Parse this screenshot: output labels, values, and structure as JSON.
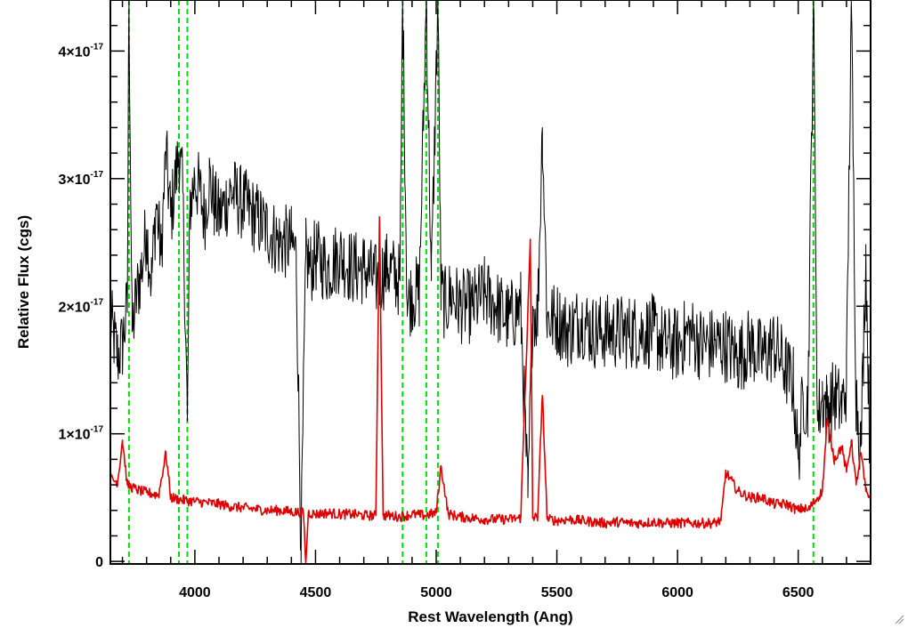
{
  "chart_data": {
    "type": "line",
    "title": "",
    "xlabel": "Rest Wavelength (Ang)",
    "ylabel": "Relative Flux (cgs)",
    "xlim": [
      3650,
      6800
    ],
    "ylim": [
      -2e-19,
      4.4e-17
    ],
    "x_ticks": [
      {
        "value": 4000,
        "label": "4000"
      },
      {
        "value": 4500,
        "label": "4500"
      },
      {
        "value": 5000,
        "label": "5000"
      },
      {
        "value": 5500,
        "label": "5500"
      },
      {
        "value": 6000,
        "label": "6000"
      },
      {
        "value": 6500,
        "label": "6500"
      }
    ],
    "y_ticks": [
      {
        "value": 0,
        "mantissa": "0",
        "exponent": ""
      },
      {
        "value": 1e-17,
        "mantissa": "1×10",
        "exponent": "-17"
      },
      {
        "value": 2e-17,
        "mantissa": "2×10",
        "exponent": "-17"
      },
      {
        "value": 3e-17,
        "mantissa": "3×10",
        "exponent": "-17"
      },
      {
        "value": 4e-17,
        "mantissa": "4×10",
        "exponent": "-17"
      }
    ],
    "vertical_markers": {
      "color": "#00dd00",
      "style": "dashed",
      "x": [
        3727,
        3934,
        3969,
        4861,
        4959,
        5007,
        6563
      ]
    },
    "series": [
      {
        "color": "#000000",
        "x": [
          3650,
          3680,
          3700,
          3720,
          3727,
          3740,
          3760,
          3780,
          3800,
          3820,
          3840,
          3860,
          3880,
          3900,
          3920,
          3934,
          3950,
          3969,
          3980,
          4000,
          4020,
          4040,
          4060,
          4080,
          4100,
          4150,
          4200,
          4250,
          4300,
          4350,
          4400,
          4420,
          4440,
          4460,
          4480,
          4500,
          4550,
          4600,
          4650,
          4700,
          4750,
          4800,
          4850,
          4861,
          4880,
          4900,
          4930,
          4959,
          4980,
          5007,
          5020,
          5040,
          5060,
          5100,
          5150,
          5200,
          5250,
          5300,
          5350,
          5380,
          5400,
          5420,
          5440,
          5460,
          5500,
          5550,
          5600,
          5650,
          5700,
          5750,
          5800,
          5850,
          5900,
          5950,
          6000,
          6050,
          6100,
          6150,
          6200,
          6250,
          6300,
          6350,
          6400,
          6450,
          6480,
          6500,
          6520,
          6540,
          6563,
          6580,
          6600,
          6620,
          6650,
          6680,
          6700,
          6720,
          6740,
          6760,
          6780,
          6800
        ],
        "y": [
          1.9e-17,
          1.6e-17,
          1.7e-17,
          2e-17,
          4.4e-17,
          1.8e-17,
          2.1e-17,
          2.3e-17,
          2.6e-17,
          2.2e-17,
          2.8e-17,
          2.4e-17,
          3.2e-17,
          2.7e-17,
          3e-17,
          3.2e-17,
          2.9e-17,
          1.1e-17,
          2.8e-17,
          3e-17,
          2.9e-17,
          2.7e-17,
          3e-17,
          2.8e-17,
          2.7e-17,
          2.9e-17,
          2.8e-17,
          2.7e-17,
          2.6e-17,
          2.5e-17,
          2.5e-17,
          2.4e-17,
          1e-18,
          2.4e-17,
          2.3e-17,
          2.4e-17,
          2.3e-17,
          2.4e-17,
          2.3e-17,
          2.3e-17,
          2.2e-17,
          2.3e-17,
          2.2e-17,
          4.4e-17,
          2e-17,
          2.1e-17,
          2.1e-17,
          4.4e-17,
          2.2e-17,
          4.4e-17,
          2.1e-17,
          2e-17,
          2.1e-17,
          2e-17,
          2e-17,
          2.1e-17,
          2e-17,
          1.9e-17,
          2e-17,
          5e-18,
          2e-17,
          1.9e-17,
          3.4e-17,
          1.9e-17,
          1.9e-17,
          1.8e-17,
          1.9e-17,
          1.8e-17,
          1.8e-17,
          1.8e-17,
          1.8e-17,
          1.8e-17,
          1.8e-17,
          1.7e-17,
          1.7e-17,
          1.8e-17,
          1.7e-17,
          1.7e-17,
          1.7e-17,
          1.6e-17,
          1.7e-17,
          1.6e-17,
          1.7e-17,
          1.5e-17,
          1.4e-17,
          8e-18,
          1.3e-17,
          1.2e-17,
          4.4e-17,
          1.1e-17,
          1.3e-17,
          1.2e-17,
          1.3e-17,
          1.2e-17,
          1.4e-17,
          4.4e-17,
          1.3e-17,
          9e-18,
          2.4e-17,
          6e-18
        ],
        "noise": 3e-18
      },
      {
        "color": "#dd0000",
        "x": [
          3650,
          3680,
          3700,
          3720,
          3740,
          3760,
          3780,
          3800,
          3850,
          3880,
          3900,
          3950,
          4000,
          4050,
          4100,
          4150,
          4200,
          4250,
          4300,
          4350,
          4400,
          4450,
          4460,
          4470,
          4500,
          4550,
          4600,
          4650,
          4700,
          4750,
          4765,
          4780,
          4800,
          4850,
          4900,
          4950,
          5000,
          5020,
          5050,
          5100,
          5150,
          5200,
          5250,
          5300,
          5350,
          5390,
          5400,
          5420,
          5440,
          5460,
          5500,
          5550,
          5600,
          5650,
          5700,
          5750,
          5800,
          5850,
          5900,
          5950,
          6000,
          6050,
          6100,
          6150,
          6180,
          6200,
          6250,
          6300,
          6350,
          6400,
          6450,
          6500,
          6520,
          6540,
          6560,
          6580,
          6600,
          6620,
          6650,
          6680,
          6700,
          6720,
          6740,
          6760,
          6780,
          6800
        ],
        "y": [
          6.5e-18,
          6.2e-18,
          9.5e-18,
          6e-18,
          5.8e-18,
          5.6e-18,
          5.5e-18,
          5.4e-18,
          5.2e-18,
          8.5e-18,
          5e-18,
          4.8e-18,
          4.7e-18,
          4.6e-18,
          4.5e-18,
          4.3e-18,
          4.2e-18,
          4.1e-18,
          4e-18,
          4e-18,
          3.9e-18,
          3.8e-18,
          -2e-19,
          3.8e-18,
          3.7e-18,
          3.8e-18,
          3.7e-18,
          3.7e-18,
          3.6e-18,
          3.6e-18,
          2.7e-17,
          3.6e-18,
          3.6e-18,
          3.5e-18,
          3.7e-18,
          3.6e-18,
          3.8e-18,
          7.5e-18,
          3.7e-18,
          3.5e-18,
          3.4e-18,
          3.3e-18,
          3.3e-18,
          3.3e-18,
          3.4e-18,
          2.5e-17,
          3.4e-18,
          3.5e-18,
          1.3e-17,
          3.3e-18,
          3.2e-18,
          3.3e-18,
          3.2e-18,
          3.1e-18,
          3e-18,
          3.1e-18,
          3e-18,
          3e-18,
          3.1e-18,
          3e-18,
          3e-18,
          3e-18,
          3e-18,
          3e-18,
          3.2e-18,
          7e-18,
          5.5e-18,
          5e-18,
          5e-18,
          4.5e-18,
          4.5e-18,
          4e-18,
          4.2e-18,
          4e-18,
          4.5e-18,
          5e-18,
          5.5e-18,
          1.1e-17,
          8e-18,
          9e-18,
          7e-18,
          9.5e-18,
          6e-18,
          8.5e-18,
          5.5e-18,
          5e-18
        ],
        "noise": 4e-19
      }
    ]
  }
}
